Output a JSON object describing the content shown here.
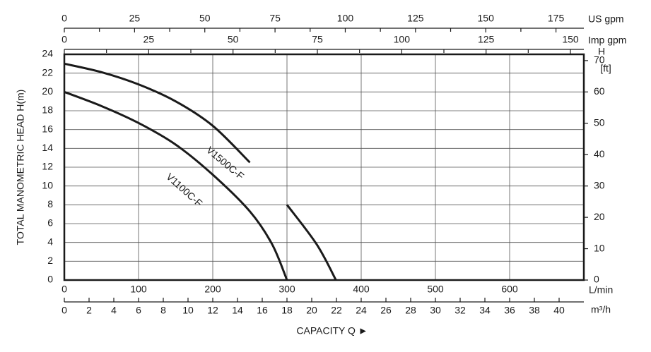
{
  "chart_data": {
    "type": "line",
    "ylabel": "TOTAL MANOMETRIC HEAD  H(m)",
    "xlabel": "CAPACITY  Q ►",
    "x": [
      0,
      50,
      100,
      150,
      200,
      250,
      280,
      300,
      340,
      366
    ],
    "xunit": "L/min",
    "xlim": [
      0,
      700
    ],
    "xticks": [
      0,
      100,
      200,
      300,
      400,
      500,
      600
    ],
    "ylim": [
      0,
      24
    ],
    "yticks": [
      0,
      2,
      4,
      6,
      8,
      10,
      12,
      14,
      16,
      18,
      20,
      22,
      24
    ],
    "y2label": [
      "H",
      "[ft]"
    ],
    "y2lim": [
      0,
      72
    ],
    "y2ticks": [
      0,
      10,
      20,
      30,
      40,
      50,
      60,
      70
    ],
    "grid": true,
    "series": [
      {
        "name": "V1500C-F",
        "color": "#1a1a1a",
        "values": [
          23,
          22.1,
          20.8,
          19,
          16.4,
          12.5,
          null,
          8,
          3.8,
          0
        ]
      },
      {
        "name": "V1100C-F",
        "color": "#1a1a1a",
        "values": [
          20,
          18.5,
          16.7,
          14.4,
          11.2,
          7.3,
          3.8,
          0,
          null,
          null
        ]
      }
    ],
    "flow_axes": [
      {
        "unit": "m³/h",
        "position": "bottom",
        "lim": [
          0,
          42
        ],
        "ticks": [
          0,
          2,
          4,
          6,
          8,
          10,
          12,
          14,
          16,
          18,
          20,
          22,
          24,
          26,
          28,
          30,
          32,
          34,
          36,
          38,
          40
        ]
      },
      {
        "unit": "Imp gpm",
        "position": "top",
        "lim": [
          0,
          153.98
        ],
        "ticks": [
          0,
          25,
          50,
          75,
          100,
          125,
          150
        ],
        "minorticks": [
          12.5,
          37.5,
          62.5,
          87.5,
          112.5,
          137.5
        ]
      },
      {
        "unit": "US gpm",
        "position": "top",
        "lim": [
          0,
          184.92
        ],
        "ticks": [
          0,
          25,
          50,
          75,
          100,
          125,
          150,
          175
        ],
        "minorticks": [
          12.5,
          37.5,
          62.5,
          87.5,
          112.5,
          137.5,
          162.5
        ]
      }
    ]
  }
}
